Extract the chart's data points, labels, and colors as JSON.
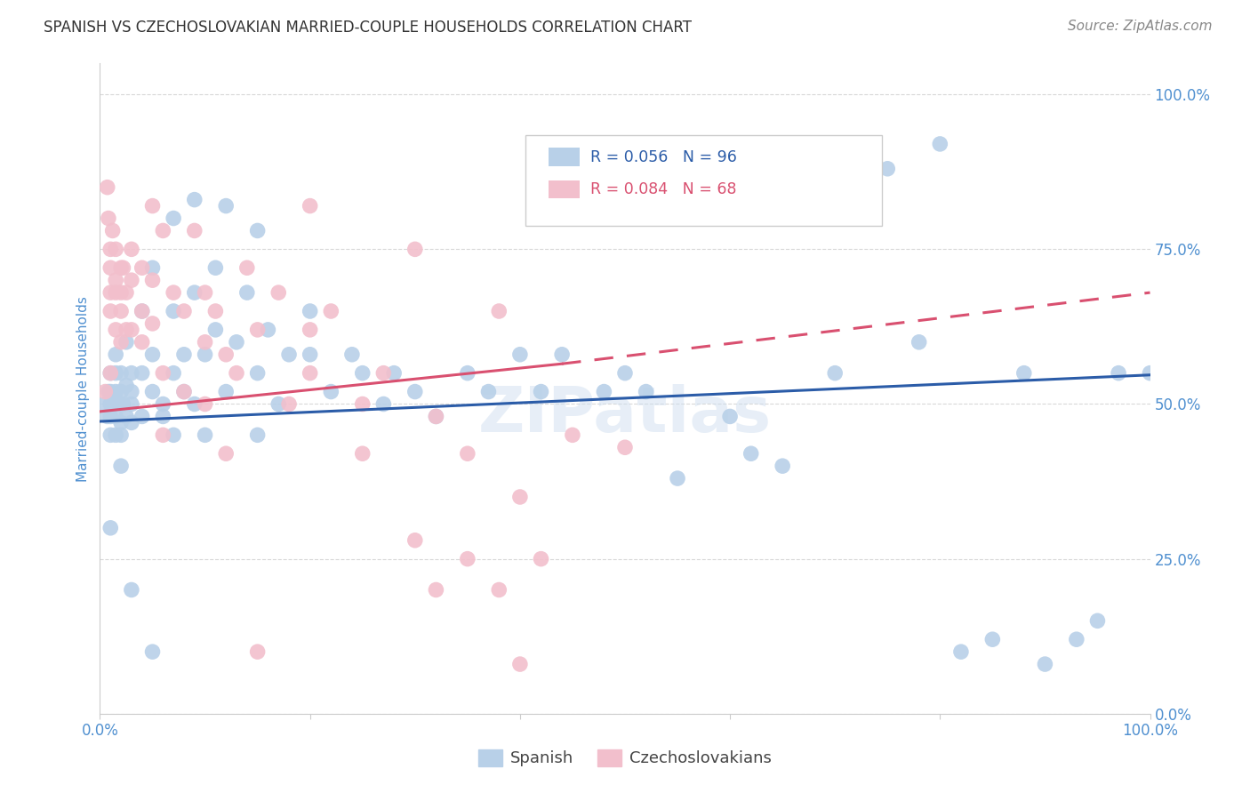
{
  "title": "SPANISH VS CZECHOSLOVAKIAN MARRIED-COUPLE HOUSEHOLDS CORRELATION CHART",
  "source": "Source: ZipAtlas.com",
  "ylabel": "Married-couple Households",
  "y_tick_labels": [
    "0.0%",
    "25.0%",
    "50.0%",
    "75.0%",
    "100.0%"
  ],
  "y_tick_positions": [
    0.0,
    0.25,
    0.5,
    0.75,
    1.0
  ],
  "legend_blue_text": "R = 0.056   N = 96",
  "legend_pink_text": "R = 0.084   N = 68",
  "blue_scatter_color": "#b8d0e8",
  "pink_scatter_color": "#f2bfcc",
  "blue_line_color": "#2b5ca8",
  "pink_line_color": "#d95070",
  "tick_label_color": "#5090d0",
  "ylabel_color": "#5090d0",
  "background_color": "#ffffff",
  "grid_color": "#d8d8d8",
  "legend_box_color": "#ffffff",
  "legend_border_color": "#cccccc",
  "spanish_x": [
    0.005,
    0.007,
    0.008,
    0.01,
    0.01,
    0.01,
    0.01,
    0.01,
    0.012,
    0.015,
    0.015,
    0.015,
    0.015,
    0.015,
    0.02,
    0.02,
    0.02,
    0.02,
    0.02,
    0.022,
    0.025,
    0.025,
    0.025,
    0.03,
    0.03,
    0.03,
    0.03,
    0.04,
    0.04,
    0.04,
    0.05,
    0.05,
    0.05,
    0.06,
    0.06,
    0.07,
    0.07,
    0.07,
    0.08,
    0.08,
    0.09,
    0.09,
    0.1,
    0.1,
    0.11,
    0.11,
    0.12,
    0.13,
    0.14,
    0.15,
    0.15,
    0.16,
    0.17,
    0.18,
    0.2,
    0.22,
    0.24,
    0.25,
    0.27,
    0.28,
    0.3,
    0.32,
    0.35,
    0.37,
    0.4,
    0.42,
    0.44,
    0.48,
    0.5,
    0.52,
    0.55,
    0.6,
    0.62,
    0.65,
    0.7,
    0.72,
    0.75,
    0.78,
    0.8,
    0.82,
    0.85,
    0.88,
    0.9,
    0.93,
    0.95,
    0.97,
    1.0,
    0.01,
    0.02,
    0.03,
    0.05,
    0.07,
    0.09,
    0.12,
    0.15,
    0.2
  ],
  "spanish_y": [
    0.5,
    0.48,
    0.52,
    0.55,
    0.5,
    0.48,
    0.45,
    0.52,
    0.5,
    0.52,
    0.48,
    0.45,
    0.58,
    0.55,
    0.5,
    0.47,
    0.52,
    0.45,
    0.55,
    0.5,
    0.53,
    0.48,
    0.6,
    0.5,
    0.47,
    0.55,
    0.52,
    0.55,
    0.48,
    0.65,
    0.58,
    0.52,
    0.72,
    0.5,
    0.48,
    0.65,
    0.55,
    0.45,
    0.58,
    0.52,
    0.5,
    0.68,
    0.58,
    0.45,
    0.62,
    0.72,
    0.52,
    0.6,
    0.68,
    0.55,
    0.45,
    0.62,
    0.5,
    0.58,
    0.58,
    0.52,
    0.58,
    0.55,
    0.5,
    0.55,
    0.52,
    0.48,
    0.55,
    0.52,
    0.58,
    0.52,
    0.58,
    0.52,
    0.55,
    0.52,
    0.38,
    0.48,
    0.42,
    0.4,
    0.55,
    0.88,
    0.88,
    0.6,
    0.92,
    0.1,
    0.12,
    0.55,
    0.08,
    0.12,
    0.15,
    0.55,
    0.55,
    0.3,
    0.4,
    0.2,
    0.1,
    0.8,
    0.83,
    0.82,
    0.78,
    0.65
  ],
  "czech_x": [
    0.005,
    0.007,
    0.008,
    0.01,
    0.01,
    0.01,
    0.01,
    0.01,
    0.012,
    0.015,
    0.015,
    0.015,
    0.015,
    0.02,
    0.02,
    0.02,
    0.02,
    0.022,
    0.025,
    0.025,
    0.03,
    0.03,
    0.03,
    0.04,
    0.04,
    0.04,
    0.05,
    0.05,
    0.06,
    0.06,
    0.07,
    0.08,
    0.09,
    0.1,
    0.1,
    0.11,
    0.12,
    0.13,
    0.14,
    0.15,
    0.17,
    0.18,
    0.2,
    0.22,
    0.25,
    0.27,
    0.3,
    0.32,
    0.35,
    0.38,
    0.4,
    0.42,
    0.45,
    0.5,
    0.3,
    0.32,
    0.35,
    0.38,
    0.4,
    0.08,
    0.1,
    0.12,
    0.15,
    0.2,
    0.05,
    0.06,
    0.2,
    0.25
  ],
  "czech_y": [
    0.52,
    0.85,
    0.8,
    0.75,
    0.72,
    0.68,
    0.65,
    0.55,
    0.78,
    0.75,
    0.7,
    0.68,
    0.62,
    0.72,
    0.68,
    0.6,
    0.65,
    0.72,
    0.68,
    0.62,
    0.75,
    0.7,
    0.62,
    0.72,
    0.65,
    0.6,
    0.7,
    0.63,
    0.78,
    0.55,
    0.68,
    0.65,
    0.78,
    0.68,
    0.6,
    0.65,
    0.58,
    0.55,
    0.72,
    0.62,
    0.68,
    0.5,
    0.62,
    0.65,
    0.5,
    0.55,
    0.75,
    0.48,
    0.42,
    0.65,
    0.35,
    0.25,
    0.45,
    0.43,
    0.28,
    0.2,
    0.25,
    0.2,
    0.08,
    0.52,
    0.5,
    0.42,
    0.1,
    0.82,
    0.82,
    0.45,
    0.55,
    0.42
  ],
  "blue_trend": [
    0.0,
    1.0,
    0.472,
    0.547
  ],
  "pink_solid": [
    0.0,
    0.44,
    0.488,
    0.565
  ],
  "pink_dashed": [
    0.44,
    1.0,
    0.565,
    0.68
  ]
}
